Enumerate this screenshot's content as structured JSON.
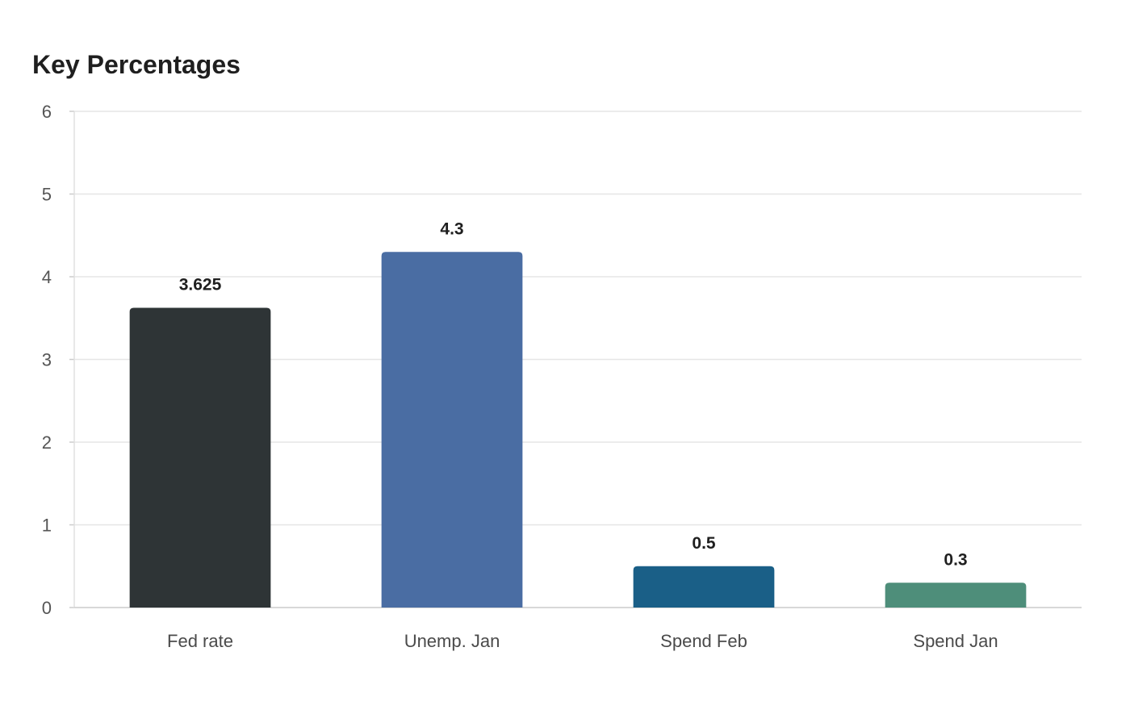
{
  "chart_data": {
    "type": "bar",
    "title": "Key Percentages",
    "categories": [
      "Fed rate",
      "Unemp. Jan",
      "Spend Feb",
      "Spend Jan"
    ],
    "values": [
      3.625,
      4.3,
      0.5,
      0.3
    ],
    "value_labels": [
      "3.625",
      "4.3",
      "0.5",
      "0.3"
    ],
    "colors": [
      "#2e3436",
      "#4a6da3",
      "#1a5f87",
      "#4e8e7a"
    ],
    "xlabel": "",
    "ylabel": "",
    "ylim": [
      0,
      6
    ],
    "yticks": [
      0,
      1,
      2,
      3,
      4,
      5,
      6
    ],
    "grid": true,
    "legend": "none"
  }
}
